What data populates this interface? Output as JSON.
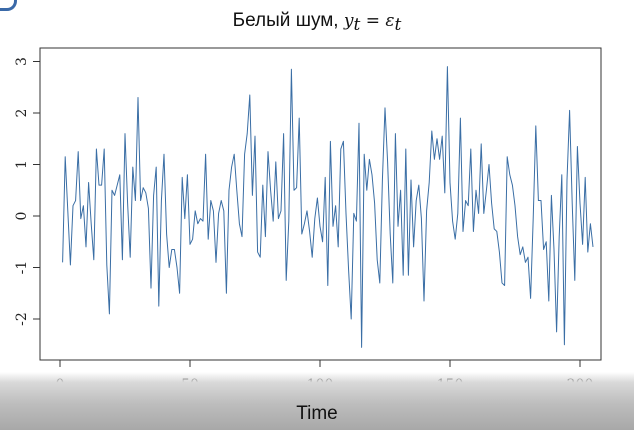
{
  "chart_data": {
    "type": "line",
    "title_text": "Белый шум, ",
    "title_math_y": "y",
    "title_math_sub": "t",
    "title_math_eq": " = ε",
    "title_math_sub2": "t",
    "xlabel": "Time",
    "ylabel": "",
    "xlim": [
      0,
      200
    ],
    "ylim": [
      -2.75,
      3.05
    ],
    "x_ticks": [
      0,
      50,
      100,
      150,
      200
    ],
    "y_ticks": [
      -2,
      -1,
      0,
      1,
      2,
      3
    ],
    "line_color": "#3a6ea5",
    "grid": false,
    "series": [
      {
        "x_start": 1,
        "x_step": 1,
        "values": [
          -0.9,
          1.15,
          0.1,
          -0.95,
          0.2,
          0.3,
          1.25,
          -0.05,
          0.2,
          -0.6,
          0.65,
          -0.15,
          -0.85,
          1.3,
          0.6,
          0.6,
          1.3,
          -0.95,
          -1.9,
          0.5,
          0.4,
          0.6,
          0.8,
          -0.85,
          1.6,
          0.25,
          -0.8,
          0.95,
          0.3,
          2.3,
          0.3,
          0.55,
          0.45,
          0.15,
          -1.4,
          0.4,
          0.95,
          -1.75,
          0.3,
          1.2,
          -0.35,
          -1.0,
          -0.65,
          -0.65,
          -1.0,
          -1.5,
          0.75,
          -0.05,
          0.8,
          -0.55,
          -0.45,
          0.1,
          -0.15,
          -0.05,
          -0.1,
          1.2,
          -0.45,
          0.3,
          0.1,
          -0.9,
          0.05,
          0.3,
          0.1,
          -1.5,
          0.5,
          0.95,
          1.2,
          0.5,
          -0.15,
          -0.4,
          1.2,
          1.6,
          2.35,
          0.4,
          1.55,
          -0.7,
          -0.8,
          0.6,
          -0.4,
          1.25,
          0.5,
          -0.1,
          1.05,
          -0.05,
          0.1,
          1.6,
          -1.25,
          -0.1,
          2.85,
          0.5,
          0.55,
          1.9,
          -0.35,
          -0.15,
          0.1,
          -0.3,
          -0.8,
          -0.05,
          0.35,
          -0.2,
          -0.5,
          0.75,
          -1.35,
          1.45,
          -0.2,
          0.2,
          -0.6,
          1.3,
          1.45,
          0.05,
          -1.05,
          -2.0,
          0.05,
          -0.1,
          1.8,
          -2.55,
          1.2,
          0.5,
          1.1,
          0.8,
          0.25,
          -0.85,
          -1.3,
          0.7,
          2.1,
          1.05,
          -0.35,
          -1.3,
          1.6,
          -0.2,
          0.5,
          -1.15,
          1.3,
          -1.15,
          0.7,
          -0.6,
          0.3,
          0.6,
          -0.05,
          -1.65,
          0.1,
          0.65,
          1.65,
          1.1,
          1.5,
          1.1,
          1.55,
          0.45,
          2.9,
          0.65,
          -0.1,
          -0.45,
          0.05,
          1.9,
          -0.3,
          0.3,
          0.2,
          1.3,
          -0.3,
          0.5,
          0.05,
          1.4,
          0.05,
          0.5,
          1.0,
          0.25,
          -0.25,
          -0.3,
          -0.7,
          -1.3,
          -1.35,
          1.15,
          0.8,
          0.6,
          0.2,
          -0.4,
          -0.75,
          -0.6,
          -0.9,
          -0.8,
          -1.6,
          -0.05,
          1.75,
          0.3,
          0.3,
          -0.65,
          -0.5,
          -1.65,
          0.4,
          -0.65,
          -2.25,
          -0.4,
          0.8,
          -2.5,
          0.7,
          2.05,
          0.25,
          -1.25,
          1.35,
          0.25,
          -0.55,
          0.75,
          -0.7,
          -0.15,
          -0.6
        ]
      }
    ]
  }
}
